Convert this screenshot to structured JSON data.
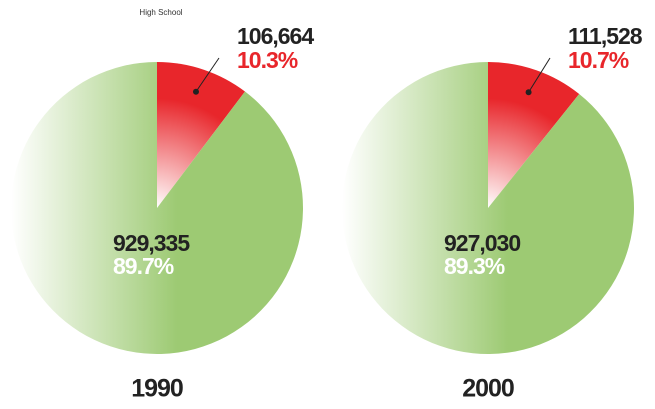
{
  "chart_data": [
    {
      "type": "pie",
      "subtitle": "High School",
      "title": "1990",
      "categories": [
        null,
        null
      ],
      "values": [
        106664,
        929335
      ],
      "value_labels": [
        "106,664",
        "929,335"
      ],
      "percents": [
        10.3,
        89.7
      ],
      "percent_labels": [
        "10.3%",
        "89.7%"
      ],
      "colors": [
        "#e8262b",
        "#9dca73"
      ]
    },
    {
      "type": "pie",
      "title": "2000",
      "categories": [
        null,
        null
      ],
      "values": [
        111528,
        927030
      ],
      "value_labels": [
        "111,528",
        "927,030"
      ],
      "percents": [
        10.7,
        89.3
      ],
      "percent_labels": [
        "10.7%",
        "89.3%"
      ],
      "colors": [
        "#e8262b",
        "#9dca73"
      ]
    }
  ]
}
